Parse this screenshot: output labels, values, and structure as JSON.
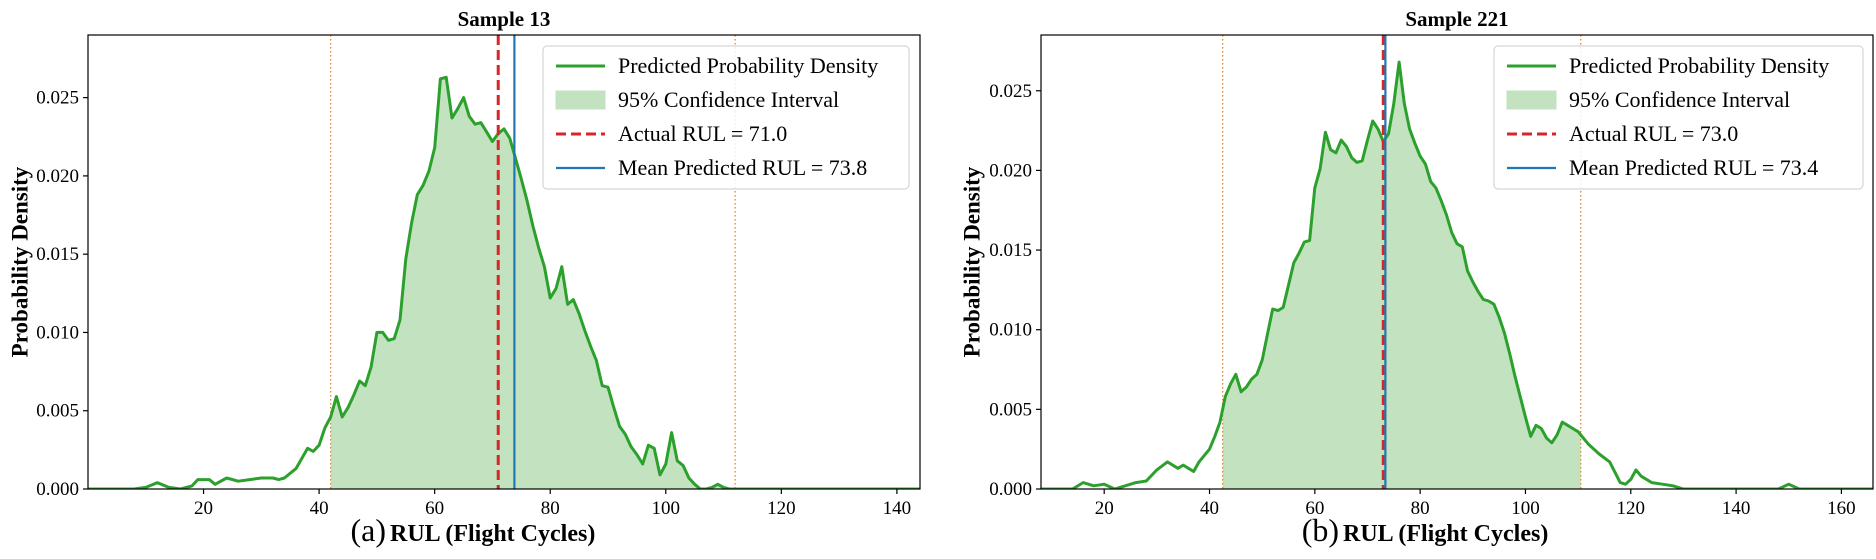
{
  "colors": {
    "density": "#2ca02c",
    "ci_fill": "#c3e3c0",
    "actual": "#d62728",
    "mean": "#1f77b4",
    "bounds": "#ff7f0e",
    "axis": "#000000"
  },
  "chart_data": [
    {
      "type": "line",
      "panel_label": "(a)",
      "title": "Sample 13",
      "xlabel": "RUL (Flight Cycles)",
      "ylabel": "Probability Density",
      "xlim": [
        0,
        144
      ],
      "ylim": [
        0,
        0.029
      ],
      "xticks": [
        20,
        40,
        60,
        80,
        100,
        120,
        140
      ],
      "yticks": [
        0.0,
        0.005,
        0.01,
        0.015,
        0.02,
        0.025
      ],
      "ytick_labels": [
        "0.000",
        "0.005",
        "0.010",
        "0.015",
        "0.020",
        "0.025"
      ],
      "legend_position": "top-right",
      "legend": {
        "density": "Predicted Probability Density",
        "ci": "95% Confidence Interval",
        "actual": "Actual RUL = 71.0",
        "mean": "Mean Predicted RUL = 73.8"
      },
      "actual_rul": 71.0,
      "mean_rul": 73.8,
      "ci_bounds": [
        42.0,
        112.0
      ],
      "series": [
        {
          "name": "Predicted Probability Density",
          "x": [
            0,
            8,
            10,
            12,
            14,
            16,
            18,
            19,
            20,
            21,
            22,
            24,
            26,
            28,
            30,
            32,
            33,
            34,
            36,
            38,
            39,
            40,
            41,
            42,
            43,
            44,
            45,
            46,
            47,
            48,
            49,
            50,
            51,
            52,
            53,
            54,
            55,
            56,
            57,
            58,
            59,
            60,
            61,
            62,
            63,
            64,
            65,
            66,
            67,
            68,
            69,
            70,
            71,
            72,
            73,
            74,
            75,
            76,
            77,
            78,
            79,
            80,
            81,
            82,
            83,
            84,
            85,
            86,
            87,
            88,
            89,
            90,
            91,
            92,
            93,
            94,
            95,
            96,
            97,
            98,
            99,
            100,
            101,
            102,
            103,
            104,
            105,
            106,
            107,
            108,
            109,
            110,
            111,
            112,
            113,
            114,
            115,
            116,
            117,
            118,
            119,
            120,
            121,
            122,
            123,
            124,
            125,
            126,
            128,
            130,
            131,
            132,
            133,
            134,
            135,
            136,
            138,
            140,
            144
          ],
          "y": [
            0.0,
            0.0,
            0.0001,
            0.0004,
            0.0001,
            0.0,
            0.0002,
            0.0006,
            0.0006,
            0.0006,
            0.0003,
            0.0007,
            0.0005,
            0.0006,
            0.0007,
            0.0007,
            0.0006,
            0.0007,
            0.0013,
            0.0026,
            0.0024,
            0.0028,
            0.0039,
            0.0046,
            0.0059,
            0.0046,
            0.0052,
            0.006,
            0.0069,
            0.0066,
            0.0078,
            0.01,
            0.01,
            0.0095,
            0.0096,
            0.0108,
            0.0147,
            0.017,
            0.0188,
            0.0194,
            0.0203,
            0.0218,
            0.0262,
            0.0263,
            0.0237,
            0.0243,
            0.025,
            0.0238,
            0.0233,
            0.0234,
            0.0228,
            0.0222,
            0.0227,
            0.023,
            0.0224,
            0.0211,
            0.0198,
            0.0184,
            0.0168,
            0.0154,
            0.0142,
            0.0122,
            0.0128,
            0.0142,
            0.0118,
            0.0121,
            0.0112,
            0.0101,
            0.0091,
            0.0082,
            0.0066,
            0.0065,
            0.0052,
            0.004,
            0.0035,
            0.0027,
            0.0022,
            0.0016,
            0.0028,
            0.0026,
            0.0009,
            0.0016,
            0.0036,
            0.0018,
            0.0015,
            0.0007,
            0.0003,
            0.0,
            0.0,
            0.0001,
            0.0003,
            0.0001,
            0.0,
            0.0,
            0.0,
            0.0,
            0.0,
            0.0,
            0.0,
            0.0,
            0.0,
            0.0,
            0.0,
            0.0,
            0.0,
            0.0,
            0.0,
            0.0,
            0.0,
            0.0,
            0.0,
            0.0,
            0.0,
            0.0,
            0.0,
            0.0,
            0.0,
            0.0,
            0.0
          ]
        }
      ]
    },
    {
      "type": "line",
      "panel_label": "(b)",
      "title": "Sample 221",
      "xlabel": "RUL (Flight Cycles)",
      "ylabel": "Probability Density",
      "xlim": [
        8,
        166
      ],
      "ylim": [
        0,
        0.0285
      ],
      "xticks": [
        20,
        40,
        60,
        80,
        100,
        120,
        140,
        160
      ],
      "yticks": [
        0.0,
        0.005,
        0.01,
        0.015,
        0.02,
        0.025
      ],
      "ytick_labels": [
        "0.000",
        "0.005",
        "0.010",
        "0.015",
        "0.020",
        "0.025"
      ],
      "legend_position": "top-right",
      "legend": {
        "density": "Predicted Probability Density",
        "ci": "95% Confidence Interval",
        "actual": "Actual RUL = 73.0",
        "mean": "Mean Predicted RUL = 73.4"
      },
      "actual_rul": 73.0,
      "mean_rul": 73.4,
      "ci_bounds": [
        42.5,
        110.5
      ],
      "series": [
        {
          "name": "Predicted Probability Density",
          "x": [
            8,
            14,
            16,
            18,
            20,
            22,
            24,
            26,
            28,
            30,
            32,
            34,
            35,
            36,
            37,
            38,
            40,
            41,
            42,
            43,
            44,
            45,
            46,
            47,
            48,
            49,
            50,
            51,
            52,
            53,
            54,
            55,
            56,
            57,
            58,
            59,
            60,
            61,
            62,
            63,
            64,
            65,
            66,
            67,
            68,
            69,
            70,
            71,
            72,
            73,
            74,
            75,
            76,
            77,
            78,
            79,
            80,
            81,
            82,
            83,
            84,
            85,
            86,
            87,
            88,
            89,
            90,
            91,
            92,
            93,
            94,
            95,
            96,
            97,
            98,
            99,
            100,
            101,
            102,
            103,
            104,
            105,
            106,
            107,
            108,
            109,
            110,
            112,
            114,
            116,
            118,
            119,
            120,
            121,
            122,
            124,
            126,
            128,
            130,
            132,
            134,
            136,
            138,
            140,
            142,
            144,
            146,
            148,
            150,
            152,
            154,
            156,
            158,
            160,
            162,
            166
          ],
          "y": [
            0.0,
            0.0,
            0.0004,
            0.0002,
            0.0003,
            0.0,
            0.0002,
            0.0004,
            0.0005,
            0.0012,
            0.0017,
            0.0013,
            0.0015,
            0.0013,
            0.0011,
            0.0017,
            0.0025,
            0.0033,
            0.0042,
            0.0058,
            0.0066,
            0.0072,
            0.0061,
            0.0064,
            0.0069,
            0.0072,
            0.0081,
            0.0097,
            0.0113,
            0.0112,
            0.0114,
            0.0128,
            0.0142,
            0.0148,
            0.0155,
            0.0156,
            0.0189,
            0.0201,
            0.0224,
            0.0213,
            0.0211,
            0.0219,
            0.0215,
            0.0208,
            0.0205,
            0.0206,
            0.0219,
            0.0231,
            0.0226,
            0.0218,
            0.0223,
            0.0242,
            0.0268,
            0.0242,
            0.0226,
            0.0217,
            0.0209,
            0.0204,
            0.0193,
            0.0189,
            0.0181,
            0.0172,
            0.0161,
            0.0154,
            0.0152,
            0.0137,
            0.013,
            0.0124,
            0.0119,
            0.0118,
            0.0116,
            0.0108,
            0.0098,
            0.0085,
            0.0071,
            0.0058,
            0.0045,
            0.0033,
            0.004,
            0.0038,
            0.0032,
            0.0029,
            0.0034,
            0.0042,
            0.004,
            0.0038,
            0.0036,
            0.0028,
            0.0022,
            0.0017,
            0.0004,
            0.0003,
            0.0006,
            0.0012,
            0.0008,
            0.0004,
            0.0003,
            0.0002,
            0.0,
            0.0,
            0.0,
            0.0,
            0.0,
            0.0,
            0.0,
            0.0,
            0.0,
            0.0,
            0.0003,
            0.0,
            0.0,
            0.0,
            0.0,
            0.0,
            0.0,
            0.0
          ]
        }
      ]
    }
  ]
}
